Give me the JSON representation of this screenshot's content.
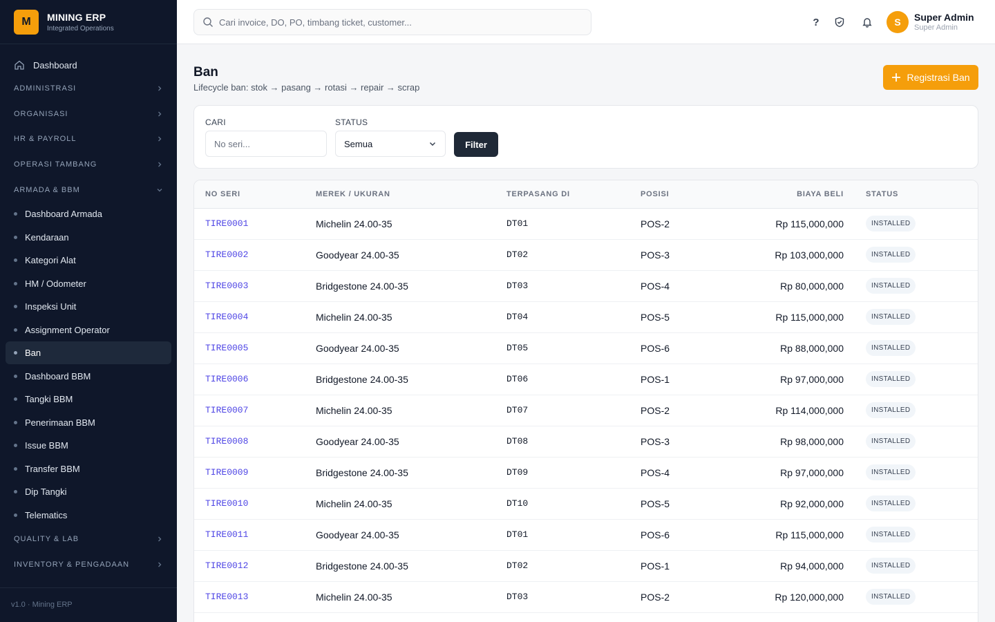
{
  "brand": {
    "logo": "M",
    "title": "MINING ERP",
    "subtitle": "Integrated Operations"
  },
  "sidebar": {
    "dashboard": "Dashboard",
    "sections": [
      {
        "label": "ADMINISTRASI",
        "expanded": false
      },
      {
        "label": "ORGANISASI",
        "expanded": false
      },
      {
        "label": "HR & PAYROLL",
        "expanded": false
      },
      {
        "label": "OPERASI TAMBANG",
        "expanded": false
      },
      {
        "label": "ARMADA & BBM",
        "expanded": true
      }
    ],
    "items": [
      "Dashboard Armada",
      "Kendaraan",
      "Kategori Alat",
      "HM / Odometer",
      "Inspeksi Unit",
      "Assignment Operator",
      "Ban",
      "Dashboard BBM",
      "Tangki BBM",
      "Penerimaan BBM",
      "Issue BBM",
      "Transfer BBM",
      "Dip Tangki",
      "Telematics"
    ],
    "active_item": "Ban",
    "sections_after": [
      {
        "label": "QUALITY & LAB",
        "expanded": false
      },
      {
        "label": "INVENTORY & PENGADAAN",
        "expanded": false
      }
    ],
    "footer": "v1.0 · Mining ERP"
  },
  "header": {
    "search_placeholder": "Cari invoice, DO, PO, timbang ticket, customer...",
    "help": "?",
    "user": {
      "initial": "S",
      "name": "Super Admin",
      "role": "Super Admin"
    }
  },
  "page": {
    "title": "Ban",
    "subtitle": "Lifecycle ban: stok → pasang → rotasi → repair → scrap",
    "primary_button": "Registrasi Ban"
  },
  "filter": {
    "search_label": "CARI",
    "search_placeholder": "No seri...",
    "status_label": "STATUS",
    "status_value": "Semua",
    "button": "Filter"
  },
  "table": {
    "columns": [
      "NO SERI",
      "MEREK / UKURAN",
      "TERPASANG DI",
      "POSISI",
      "BIAYA BELI",
      "STATUS"
    ],
    "rows": [
      [
        "TIRE0001",
        "Michelin 24.00-35",
        "DT01",
        "POS-2",
        "Rp 115,000,000",
        "INSTALLED"
      ],
      [
        "TIRE0002",
        "Goodyear 24.00-35",
        "DT02",
        "POS-3",
        "Rp 103,000,000",
        "INSTALLED"
      ],
      [
        "TIRE0003",
        "Bridgestone 24.00-35",
        "DT03",
        "POS-4",
        "Rp 80,000,000",
        "INSTALLED"
      ],
      [
        "TIRE0004",
        "Michelin 24.00-35",
        "DT04",
        "POS-5",
        "Rp 115,000,000",
        "INSTALLED"
      ],
      [
        "TIRE0005",
        "Goodyear 24.00-35",
        "DT05",
        "POS-6",
        "Rp 88,000,000",
        "INSTALLED"
      ],
      [
        "TIRE0006",
        "Bridgestone 24.00-35",
        "DT06",
        "POS-1",
        "Rp 97,000,000",
        "INSTALLED"
      ],
      [
        "TIRE0007",
        "Michelin 24.00-35",
        "DT07",
        "POS-2",
        "Rp 114,000,000",
        "INSTALLED"
      ],
      [
        "TIRE0008",
        "Goodyear 24.00-35",
        "DT08",
        "POS-3",
        "Rp 98,000,000",
        "INSTALLED"
      ],
      [
        "TIRE0009",
        "Bridgestone 24.00-35",
        "DT09",
        "POS-4",
        "Rp 97,000,000",
        "INSTALLED"
      ],
      [
        "TIRE0010",
        "Michelin 24.00-35",
        "DT10",
        "POS-5",
        "Rp 92,000,000",
        "INSTALLED"
      ],
      [
        "TIRE0011",
        "Goodyear 24.00-35",
        "DT01",
        "POS-6",
        "Rp 115,000,000",
        "INSTALLED"
      ],
      [
        "TIRE0012",
        "Bridgestone 24.00-35",
        "DT02",
        "POS-1",
        "Rp 94,000,000",
        "INSTALLED"
      ],
      [
        "TIRE0013",
        "Michelin 24.00-35",
        "DT03",
        "POS-2",
        "Rp 120,000,000",
        "INSTALLED"
      ]
    ]
  },
  "colors": {
    "accent": "#f59e0b",
    "sidebar_bg": "#0f172a",
    "link": "#4f46e5"
  }
}
